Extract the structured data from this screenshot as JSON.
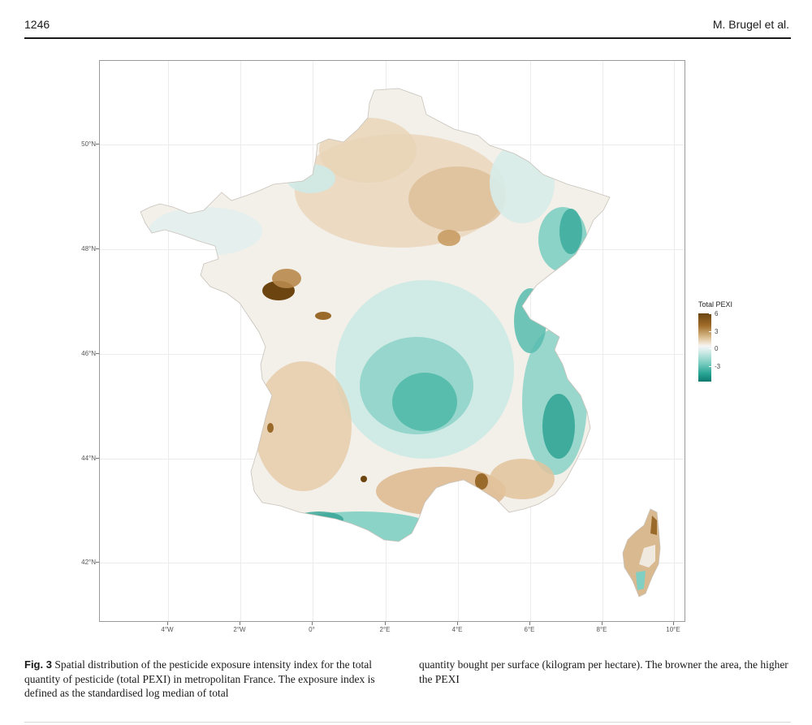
{
  "header": {
    "page_number": "1246",
    "authors": "M. Brugel et al."
  },
  "figure": {
    "axes": {
      "y_labels": [
        "50°N",
        "48°N",
        "46°N",
        "44°N",
        "42°N"
      ],
      "x_labels": [
        "4°W",
        "2°W",
        "0°",
        "2°E",
        "4°E",
        "6°E",
        "8°E",
        "10°E"
      ]
    },
    "legend": {
      "title": "Total PEXI",
      "ticks": [
        "6",
        "3",
        "0",
        "-3"
      ],
      "colors": {
        "high": "#6b4410",
        "mid": "#f5f5f5",
        "low": "#0b7a6e"
      }
    }
  },
  "caption": {
    "label": "Fig. 3",
    "text_part1": "Spatial distribution of the pesticide exposure intensity index for the total quantity of pesticide (total PEXI) in metropolitan France. The exposure index is defined as the standardised log median of total",
    "text_part2": "quantity bought per surface (kilogram per hectare). The browner the area, the higher the PEXI"
  }
}
